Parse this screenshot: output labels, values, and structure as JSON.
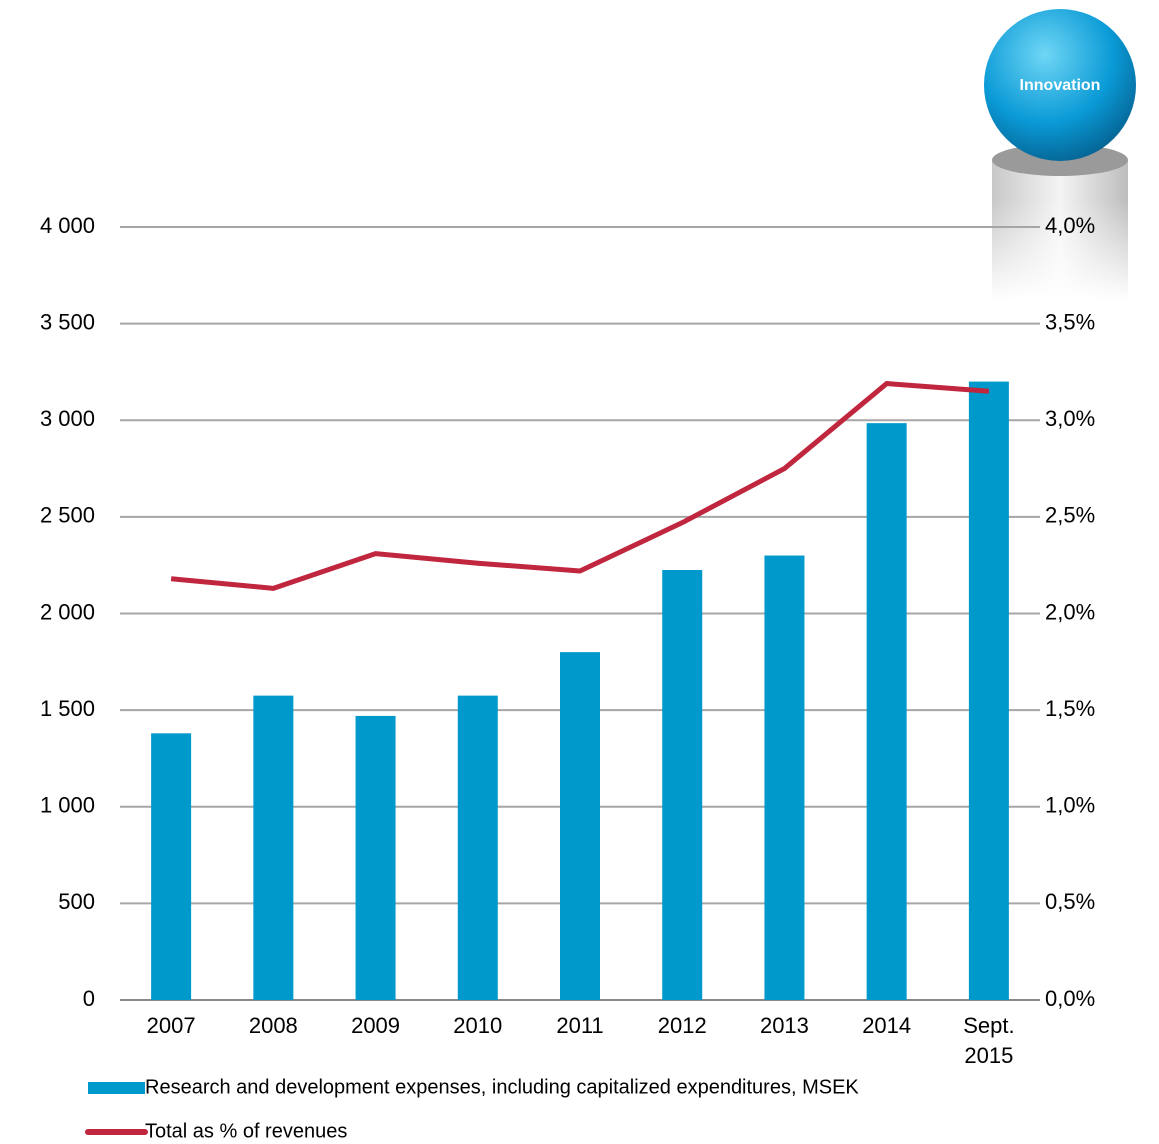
{
  "chart_data": {
    "type": "bar_line",
    "annotations": [
      "Innovation"
    ],
    "categories": [
      "2007",
      "2008",
      "2009",
      "2010",
      "2011",
      "2012",
      "2013",
      "2014",
      "Sept. 2015"
    ],
    "series": [
      {
        "name": "Research and development expenses, including capitalized expenditures, MSEK",
        "type": "bar",
        "color": "#0099cc",
        "values": [
          1380,
          1575,
          1470,
          1575,
          1800,
          2225,
          2300,
          2985,
          3200
        ]
      },
      {
        "name": "Total as % of revenues",
        "type": "line",
        "axis": "y2",
        "color": "#c0263e",
        "values": [
          2.18,
          2.13,
          2.31,
          2.26,
          2.22,
          2.47,
          2.75,
          3.19,
          3.15
        ]
      }
    ],
    "ylim": [
      0,
      4000
    ],
    "yticks": [
      0,
      500,
      {
        "value": 1000,
        "label": "1 000"
      },
      {
        "value": 1500,
        "label": "1 500"
      },
      {
        "value": 2000,
        "label": "2 000"
      },
      {
        "value": 2500,
        "label": "2 500"
      },
      {
        "value": 3000,
        "label": "3 000"
      },
      {
        "value": 3500,
        "label": "3 500"
      },
      {
        "value": 4000,
        "label": "4 000"
      }
    ],
    "y2lim": [
      0,
      4
    ],
    "y2ticks": [
      {
        "value": 0,
        "label": "0,0%"
      },
      {
        "value": 0.5,
        "label": "0,5%"
      },
      {
        "value": 1,
        "label": "1,0%"
      },
      {
        "value": 1.5,
        "label": "1,5%"
      },
      {
        "value": 2,
        "label": "2,0%"
      },
      {
        "value": 2.5,
        "label": "2,5%"
      },
      {
        "value": 3,
        "label": "3,0%"
      },
      {
        "value": 3.5,
        "label": "3,5%"
      },
      {
        "value": 4,
        "label": "4,0%"
      }
    ],
    "grid": true
  }
}
